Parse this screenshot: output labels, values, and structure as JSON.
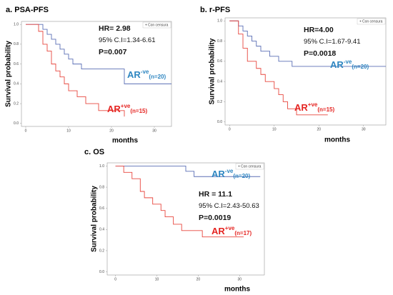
{
  "chart_data": [
    {
      "type": "line",
      "title": "a. PSA-PFS",
      "ylabel": "Survival probability",
      "xlabel": "months",
      "legend": "Con censura",
      "annotations": [
        "HR= 2.98",
        "95% C.I=1.34-6.61",
        "P=0.007"
      ],
      "xlim": [
        -1,
        34
      ],
      "ylim": [
        -0.03,
        1.03
      ],
      "xticks": [
        0,
        10,
        20,
        30
      ],
      "yticks": [
        {
          "value": 0,
          "label": "0.0"
        },
        0.2,
        0.4,
        0.6,
        0.8,
        {
          "value": 1,
          "label": "1.0"
        }
      ],
      "series": [
        {
          "name": "AR",
          "sup": "-ve",
          "n": "(n=20)",
          "color": "#5b6fb5",
          "label_color": "#2e86c1",
          "x": [
            0,
            4,
            5,
            6,
            7,
            8,
            9,
            10,
            11,
            13,
            15,
            23,
            34
          ],
          "values": [
            1,
            0.95,
            0.9,
            0.85,
            0.8,
            0.75,
            0.7,
            0.65,
            0.6,
            0.55,
            0.55,
            0.4,
            0.4
          ]
        },
        {
          "name": "AR",
          "sup": "+ve",
          "n": "(n=15)",
          "color": "#e8473f",
          "label_color": "#e52421",
          "x": [
            0,
            3,
            4,
            5,
            6,
            7,
            8,
            9,
            10,
            12,
            14,
            17,
            19,
            23
          ],
          "values": [
            1,
            0.93,
            0.8,
            0.73,
            0.6,
            0.53,
            0.47,
            0.4,
            0.33,
            0.27,
            0.2,
            0.13,
            0.13,
            0.07
          ]
        }
      ]
    },
    {
      "type": "line",
      "title": "b. r-PFS",
      "ylabel": "Survival probability",
      "xlabel": "months",
      "legend": "Con censura",
      "annotations": [
        "HR=4.00",
        "95% C.I=1.67-9.41",
        "P=0.0018"
      ],
      "xlim": [
        -1,
        35
      ],
      "ylim": [
        -0.03,
        1.03
      ],
      "xticks": [
        0,
        10,
        20,
        30
      ],
      "yticks": [
        {
          "value": 0,
          "label": "0.0"
        },
        0.2,
        0.4,
        0.6,
        0.8,
        {
          "value": 1,
          "label": "1.0"
        }
      ],
      "series": [
        {
          "name": "AR",
          "sup": "-ve",
          "n": "(n=20)",
          "color": "#5b6fb5",
          "label_color": "#2e86c1",
          "x": [
            0,
            2,
            3,
            4,
            5,
            6,
            7,
            9,
            11,
            12,
            14,
            20,
            35
          ],
          "values": [
            1,
            0.95,
            0.9,
            0.85,
            0.8,
            0.75,
            0.7,
            0.65,
            0.6,
            0.6,
            0.55,
            0.55,
            0.55
          ]
        },
        {
          "name": "AR",
          "sup": "+ve",
          "n": "(n=15)",
          "color": "#e8473f",
          "label_color": "#e52421",
          "x": [
            0,
            2,
            3,
            4,
            6,
            7,
            8,
            10,
            11,
            12,
            13,
            15,
            17,
            22
          ],
          "values": [
            1,
            0.87,
            0.73,
            0.6,
            0.53,
            0.47,
            0.4,
            0.33,
            0.27,
            0.2,
            0.13,
            0.07,
            0.07,
            0.07
          ]
        }
      ]
    },
    {
      "type": "line",
      "title": "c. OS",
      "ylabel": "Survival probability",
      "xlabel": "months",
      "legend": "Con censura",
      "annotations": [
        "HR = 11.1",
        "95% C.I=2.43-50.63",
        "P=0.0019"
      ],
      "xlim": [
        -2,
        36
      ],
      "ylim": [
        -0.03,
        1.03
      ],
      "xticks": [
        0,
        10,
        20,
        30
      ],
      "yticks": [
        {
          "value": 0,
          "label": "0.0"
        },
        0.2,
        0.4,
        0.6,
        0.8,
        {
          "value": 1,
          "label": "1.0"
        }
      ],
      "series": [
        {
          "name": "AR",
          "sup": "-ve",
          "n": "(n=20)",
          "color": "#5b6fb5",
          "label_color": "#2e86c1",
          "x": [
            0,
            17,
            19,
            35
          ],
          "values": [
            1,
            0.95,
            0.9,
            0.9
          ]
        },
        {
          "name": "AR",
          "sup": "+ve",
          "n": "(n=17)",
          "color": "#e8473f",
          "label_color": "#e52421",
          "x": [
            0,
            2,
            4,
            6,
            7,
            9,
            11,
            12,
            14,
            16,
            21,
            31
          ],
          "values": [
            1,
            0.94,
            0.88,
            0.76,
            0.7,
            0.64,
            0.58,
            0.52,
            0.45,
            0.39,
            0.33,
            0.33
          ]
        }
      ]
    }
  ]
}
